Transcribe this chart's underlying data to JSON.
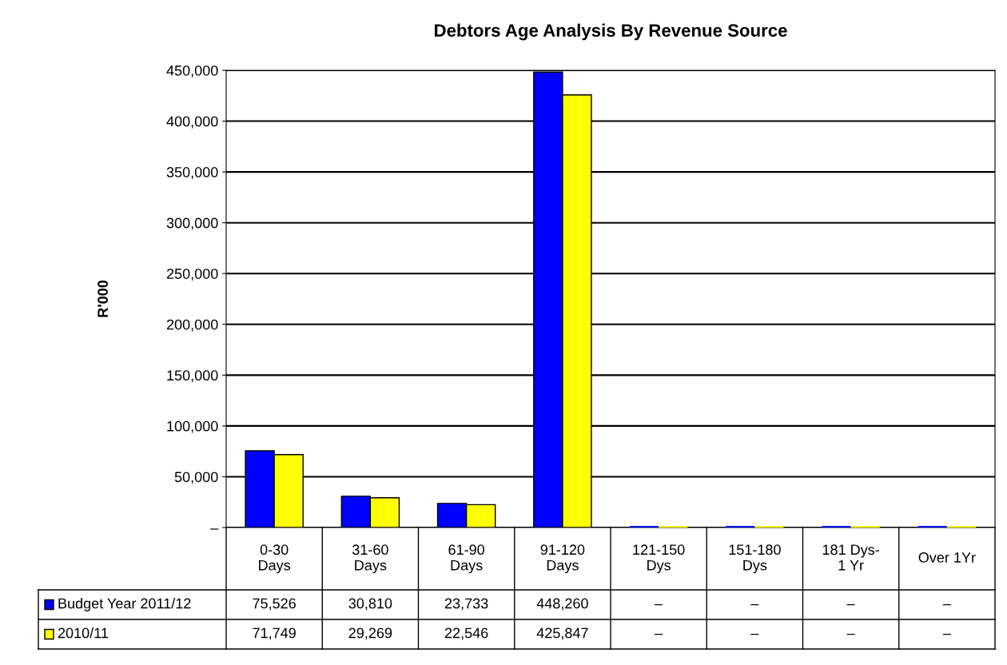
{
  "chart_data": {
    "type": "bar",
    "title": "Debtors Age Analysis By Revenue Source",
    "ylabel": "R'000",
    "categories": [
      "0-30\nDays",
      "31-60\nDays",
      "61-90\nDays",
      "91-120\nDays",
      "121-150\nDys",
      "151-180\nDys",
      "181 Dys-\n1 Yr",
      "Over 1Yr"
    ],
    "series": [
      {
        "name": "Budget Year 2011/12",
        "color": "#0000ff",
        "values": [
          75526,
          30810,
          23733,
          448260,
          0,
          0,
          0,
          0
        ],
        "value_labels": [
          "75,526",
          "30,810",
          "23,733",
          "448,260",
          "–",
          "–",
          "–",
          "–"
        ]
      },
      {
        "name": "2010/11",
        "color": "#ffff00",
        "values": [
          71749,
          29269,
          22546,
          425847,
          0,
          0,
          0,
          0
        ],
        "value_labels": [
          "71,749",
          "29,269",
          "22,546",
          "425,847",
          "–",
          "–",
          "–",
          "–"
        ]
      }
    ],
    "ylim": [
      0,
      450000
    ],
    "yticks": [
      {
        "value": 0,
        "label": "–"
      },
      {
        "value": 50000,
        "label": "50,000"
      },
      {
        "value": 100000,
        "label": "100,000"
      },
      {
        "value": 150000,
        "label": "150,000"
      },
      {
        "value": 200000,
        "label": "200,000"
      },
      {
        "value": 250000,
        "label": "250,000"
      },
      {
        "value": 300000,
        "label": "300,000"
      },
      {
        "value": 350000,
        "label": "350,000"
      },
      {
        "value": 400000,
        "label": "400,000"
      },
      {
        "value": 450000,
        "label": "450,000"
      }
    ],
    "grid": "y",
    "legend": "bottom"
  }
}
